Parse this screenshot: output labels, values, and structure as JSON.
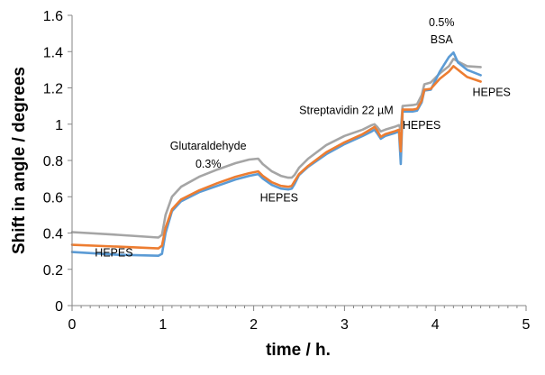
{
  "chart_data": {
    "type": "line",
    "title": "",
    "xlabel": "time / h.",
    "ylabel": "Shift in angle / degrees",
    "xlim": [
      0,
      5
    ],
    "ylim": [
      0,
      1.6
    ],
    "x_ticks": [
      0,
      1,
      2,
      3,
      4,
      5
    ],
    "x_tick_labels": [
      "0",
      "1",
      "2",
      "3",
      "4",
      "5"
    ],
    "y_ticks": [
      0,
      0.2,
      0.4,
      0.6,
      0.8,
      1,
      1.2,
      1.4,
      1.6
    ],
    "y_tick_labels": [
      "0",
      "0.2",
      "0.4",
      "0.6",
      "0.8",
      "1",
      "1.2",
      "1.4",
      "1.6"
    ],
    "grid": false,
    "legend": "none",
    "series": [
      {
        "name": "gray",
        "color": "#a5a5a5",
        "points": [
          [
            0,
            0.405
          ],
          [
            0.5,
            0.39
          ],
          [
            0.95,
            0.375
          ],
          [
            0.99,
            0.39
          ],
          [
            1.03,
            0.5
          ],
          [
            1.1,
            0.6
          ],
          [
            1.2,
            0.655
          ],
          [
            1.4,
            0.71
          ],
          [
            1.6,
            0.75
          ],
          [
            1.8,
            0.785
          ],
          [
            1.95,
            0.805
          ],
          [
            2.05,
            0.81
          ],
          [
            2.1,
            0.78
          ],
          [
            2.2,
            0.74
          ],
          [
            2.3,
            0.715
          ],
          [
            2.38,
            0.705
          ],
          [
            2.42,
            0.705
          ],
          [
            2.45,
            0.72
          ],
          [
            2.5,
            0.76
          ],
          [
            2.6,
            0.81
          ],
          [
            2.8,
            0.885
          ],
          [
            3.0,
            0.935
          ],
          [
            3.2,
            0.97
          ],
          [
            3.3,
            0.995
          ],
          [
            3.33,
            1.0
          ],
          [
            3.36,
            0.985
          ],
          [
            3.4,
            0.96
          ],
          [
            3.45,
            0.97
          ],
          [
            3.55,
            0.985
          ],
          [
            3.6,
            0.995
          ],
          [
            3.62,
            0.97
          ],
          [
            3.64,
            1.1
          ],
          [
            3.75,
            1.105
          ],
          [
            3.8,
            1.11
          ],
          [
            3.85,
            1.16
          ],
          [
            3.88,
            1.22
          ],
          [
            3.95,
            1.23
          ],
          [
            4.05,
            1.28
          ],
          [
            4.15,
            1.32
          ],
          [
            4.2,
            1.36
          ],
          [
            4.25,
            1.345
          ],
          [
            4.35,
            1.32
          ],
          [
            4.5,
            1.315
          ]
        ]
      },
      {
        "name": "blue",
        "color": "#5b9bd5",
        "points": [
          [
            0,
            0.295
          ],
          [
            0.5,
            0.28
          ],
          [
            0.95,
            0.275
          ],
          [
            0.99,
            0.285
          ],
          [
            1.03,
            0.4
          ],
          [
            1.1,
            0.52
          ],
          [
            1.2,
            0.575
          ],
          [
            1.4,
            0.625
          ],
          [
            1.6,
            0.66
          ],
          [
            1.8,
            0.695
          ],
          [
            1.95,
            0.715
          ],
          [
            2.05,
            0.725
          ],
          [
            2.1,
            0.7
          ],
          [
            2.2,
            0.665
          ],
          [
            2.3,
            0.645
          ],
          [
            2.38,
            0.64
          ],
          [
            2.42,
            0.645
          ],
          [
            2.45,
            0.67
          ],
          [
            2.5,
            0.72
          ],
          [
            2.6,
            0.765
          ],
          [
            2.8,
            0.835
          ],
          [
            3.0,
            0.89
          ],
          [
            3.2,
            0.935
          ],
          [
            3.3,
            0.96
          ],
          [
            3.33,
            0.97
          ],
          [
            3.36,
            0.95
          ],
          [
            3.4,
            0.92
          ],
          [
            3.45,
            0.935
          ],
          [
            3.55,
            0.95
          ],
          [
            3.6,
            0.96
          ],
          [
            3.62,
            0.78
          ],
          [
            3.64,
            1.07
          ],
          [
            3.75,
            1.07
          ],
          [
            3.8,
            1.075
          ],
          [
            3.85,
            1.12
          ],
          [
            3.88,
            1.185
          ],
          [
            3.95,
            1.19
          ],
          [
            4.05,
            1.29
          ],
          [
            4.15,
            1.37
          ],
          [
            4.2,
            1.395
          ],
          [
            4.25,
            1.34
          ],
          [
            4.35,
            1.3
          ],
          [
            4.5,
            1.27
          ]
        ]
      },
      {
        "name": "orange",
        "color": "#ed7d31",
        "points": [
          [
            0,
            0.335
          ],
          [
            0.5,
            0.325
          ],
          [
            0.95,
            0.315
          ],
          [
            0.99,
            0.33
          ],
          [
            1.03,
            0.43
          ],
          [
            1.1,
            0.53
          ],
          [
            1.2,
            0.585
          ],
          [
            1.4,
            0.635
          ],
          [
            1.6,
            0.675
          ],
          [
            1.8,
            0.71
          ],
          [
            1.95,
            0.73
          ],
          [
            2.05,
            0.74
          ],
          [
            2.1,
            0.715
          ],
          [
            2.2,
            0.68
          ],
          [
            2.3,
            0.66
          ],
          [
            2.38,
            0.655
          ],
          [
            2.42,
            0.66
          ],
          [
            2.45,
            0.685
          ],
          [
            2.5,
            0.725
          ],
          [
            2.6,
            0.77
          ],
          [
            2.8,
            0.845
          ],
          [
            3.0,
            0.9
          ],
          [
            3.2,
            0.945
          ],
          [
            3.3,
            0.975
          ],
          [
            3.33,
            0.985
          ],
          [
            3.36,
            0.965
          ],
          [
            3.4,
            0.93
          ],
          [
            3.45,
            0.945
          ],
          [
            3.55,
            0.96
          ],
          [
            3.6,
            0.97
          ],
          [
            3.62,
            0.85
          ],
          [
            3.64,
            1.08
          ],
          [
            3.75,
            1.08
          ],
          [
            3.8,
            1.085
          ],
          [
            3.85,
            1.13
          ],
          [
            3.88,
            1.19
          ],
          [
            3.95,
            1.195
          ],
          [
            4.05,
            1.25
          ],
          [
            4.15,
            1.29
          ],
          [
            4.2,
            1.32
          ],
          [
            4.25,
            1.3
          ],
          [
            4.35,
            1.26
          ],
          [
            4.5,
            1.235
          ]
        ]
      }
    ],
    "annotations": [
      {
        "id": "hepes-1",
        "text": "HEPES",
        "x": 0.25,
        "y": 0.27,
        "anchor": "start"
      },
      {
        "id": "glutaraldehyde",
        "text": "Glutaraldehyde",
        "x": 1.5,
        "y": 0.86,
        "anchor": "middle"
      },
      {
        "id": "glutaraldehyde-conc",
        "text": "0.3%",
        "x": 1.5,
        "y": 0.76,
        "anchor": "middle"
      },
      {
        "id": "hepes-2",
        "text": "HEPES",
        "x": 2.28,
        "y": 0.575,
        "anchor": "middle"
      },
      {
        "id": "streptavidin",
        "text": "Streptavidin  22 µM",
        "x": 3.02,
        "y": 1.055,
        "anchor": "middle"
      },
      {
        "id": "hepes-3",
        "text": "HEPES",
        "x": 3.85,
        "y": 0.975,
        "anchor": "middle"
      },
      {
        "id": "bsa-conc",
        "text": "0.5%",
        "x": 4.07,
        "y": 1.54,
        "anchor": "middle"
      },
      {
        "id": "bsa",
        "text": "BSA",
        "x": 4.07,
        "y": 1.445,
        "anchor": "middle"
      },
      {
        "id": "hepes-4",
        "text": "HEPES",
        "x": 4.62,
        "y": 1.155,
        "anchor": "middle"
      }
    ]
  }
}
